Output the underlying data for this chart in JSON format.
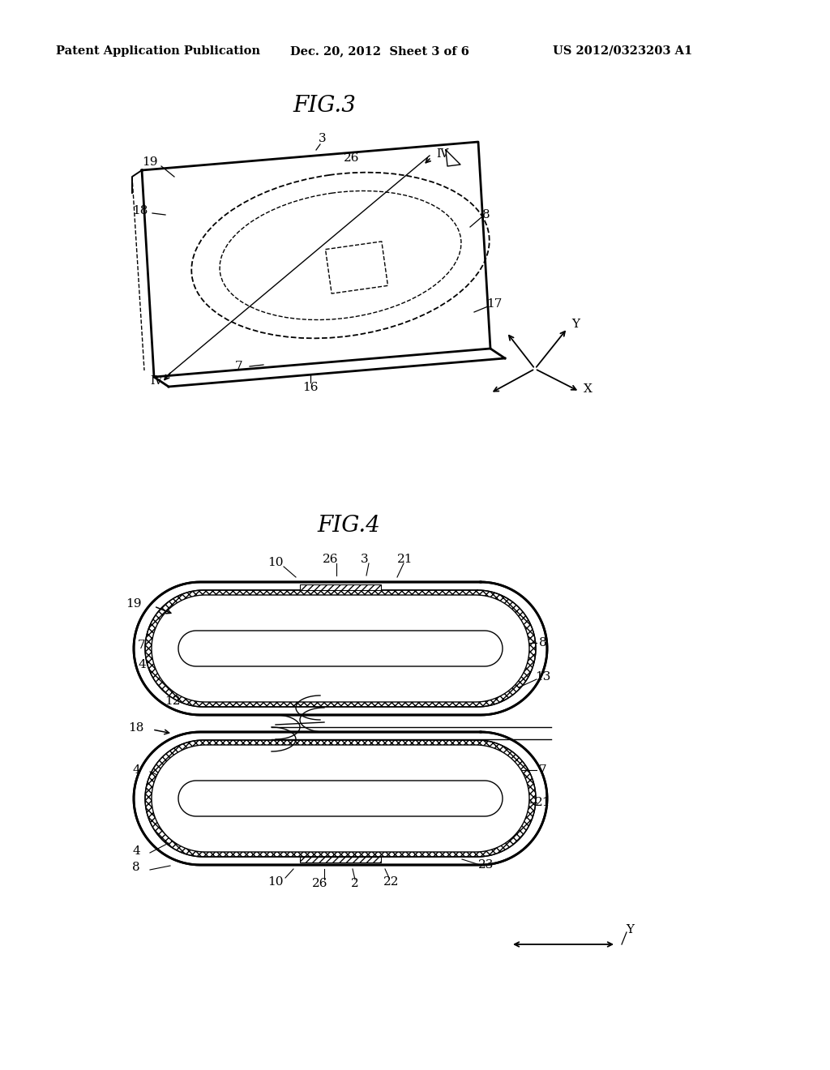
{
  "background_color": "#ffffff",
  "header_left": "Patent Application Publication",
  "header_mid": "Dec. 20, 2012  Sheet 3 of 6",
  "header_right": "US 2012/0323203 A1",
  "fig3_title": "FIG.3",
  "fig4_title": "FIG.4",
  "line_color": "#000000"
}
